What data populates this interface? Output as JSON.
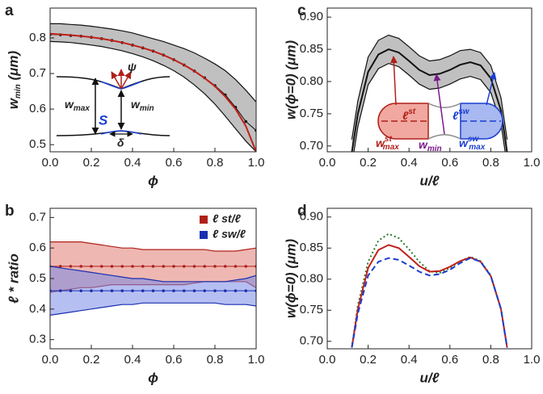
{
  "chart_data": [
    {
      "type": "line",
      "panel": "a",
      "x": [
        0,
        0.05,
        0.1,
        0.15,
        0.2,
        0.25,
        0.3,
        0.35,
        0.4,
        0.45,
        0.5,
        0.55,
        0.6,
        0.65,
        0.7,
        0.75,
        0.8,
        0.85,
        0.9,
        0.95,
        1
      ],
      "xlim": [
        0,
        1
      ],
      "ylim": [
        0.48,
        0.884
      ],
      "xticks": [
        {
          "value": 0,
          "label": "0.0"
        },
        {
          "value": 0.2,
          "label": "0.2"
        },
        {
          "value": 0.4,
          "label": "0.4"
        },
        {
          "value": 0.6,
          "label": "0.6"
        },
        {
          "value": 0.8,
          "label": "0.8"
        },
        {
          "value": 1,
          "label": "1.0"
        }
      ],
      "yticks": [
        0.5,
        0.6,
        0.7,
        0.8
      ],
      "xlabel": "ϕ",
      "ylabel": {
        "main": "w",
        "sub": "min",
        "unit": " (μm)"
      },
      "series": [
        {
          "color": "#111111",
          "band_color": "#8c8c8c",
          "markers": true,
          "values": [
            0.81,
            0.809,
            0.807,
            0.805,
            0.802,
            0.798,
            0.793,
            0.787,
            0.78,
            0.772,
            0.763,
            0.752,
            0.739,
            0.724,
            0.707,
            0.688,
            0.666,
            0.64,
            0.605,
            0.565,
            0.54
          ],
          "upper": [
            0.84,
            0.84,
            0.838,
            0.836,
            0.833,
            0.829,
            0.825,
            0.82,
            0.814,
            0.806,
            0.798,
            0.79,
            0.78,
            0.77,
            0.758,
            0.743,
            0.727,
            0.708,
            0.683,
            0.653,
            0.62
          ],
          "lower": [
            0.79,
            0.789,
            0.787,
            0.784,
            0.78,
            0.776,
            0.77,
            0.764,
            0.756,
            0.747,
            0.736,
            0.723,
            0.708,
            0.69,
            0.668,
            0.643,
            0.614,
            0.58,
            0.545,
            0.51,
            0.48
          ]
        },
        {
          "color": "#c0201a",
          "values": [
            0.812,
            0.81,
            0.808,
            0.805,
            0.802,
            0.798,
            0.793,
            0.787,
            0.78,
            0.772,
            0.763,
            0.752,
            0.739,
            0.724,
            0.707,
            0.687,
            0.664,
            0.635,
            0.6,
            0.552,
            0.48
          ]
        }
      ],
      "annotations": {
        "wmax": {
          "main": "w",
          "sub": "max"
        },
        "wmin": {
          "main": "w",
          "sub": "min"
        },
        "S": "S",
        "delta": "δ",
        "psi": "ψ"
      }
    },
    {
      "type": "line",
      "panel": "b",
      "x": [
        0,
        0.05,
        0.1,
        0.15,
        0.2,
        0.25,
        0.3,
        0.35,
        0.4,
        0.45,
        0.5,
        0.55,
        0.6,
        0.65,
        0.7,
        0.75,
        0.8,
        0.85,
        0.9,
        0.95,
        1
      ],
      "xlim": [
        0,
        1
      ],
      "ylim": [
        0.27,
        0.73
      ],
      "xticks": [
        {
          "value": 0,
          "label": "0.0"
        },
        {
          "value": 0.2,
          "label": "0.2"
        },
        {
          "value": 0.4,
          "label": "0.4"
        },
        {
          "value": 0.6,
          "label": "0.6"
        },
        {
          "value": 0.8,
          "label": "0.8"
        },
        {
          "value": 1,
          "label": "1.0"
        }
      ],
      "yticks": [
        0.3,
        0.4,
        0.5,
        0.6,
        0.7
      ],
      "xlabel": "ϕ",
      "ylabel": "ℓ * ratio",
      "legend": "upper right",
      "series": [
        {
          "name": "ℓ st/ℓ",
          "color": "#b0201a",
          "band_color": "#e07b72",
          "markers": true,
          "values": [
            0.54,
            0.54,
            0.54,
            0.54,
            0.54,
            0.54,
            0.54,
            0.54,
            0.54,
            0.54,
            0.54,
            0.54,
            0.54,
            0.54,
            0.54,
            0.54,
            0.54,
            0.54,
            0.54,
            0.54,
            0.54
          ],
          "upper": [
            0.62,
            0.62,
            0.62,
            0.62,
            0.615,
            0.61,
            0.605,
            0.6,
            0.6,
            0.595,
            0.595,
            0.595,
            0.595,
            0.595,
            0.595,
            0.595,
            0.59,
            0.59,
            0.59,
            0.595,
            0.6
          ],
          "lower": [
            0.455,
            0.46,
            0.465,
            0.47,
            0.47,
            0.475,
            0.48,
            0.48,
            0.48,
            0.48,
            0.48,
            0.48,
            0.48,
            0.48,
            0.485,
            0.49,
            0.49,
            0.49,
            0.49,
            0.49,
            0.47
          ]
        },
        {
          "name": "ℓ sw/ℓ",
          "color": "#1a2fb0",
          "band_color": "#7a8ae6",
          "markers": true,
          "values": [
            0.46,
            0.46,
            0.46,
            0.46,
            0.46,
            0.46,
            0.46,
            0.46,
            0.46,
            0.46,
            0.46,
            0.46,
            0.46,
            0.46,
            0.46,
            0.46,
            0.46,
            0.46,
            0.46,
            0.46,
            0.46
          ],
          "upper": [
            0.54,
            0.535,
            0.53,
            0.525,
            0.52,
            0.515,
            0.51,
            0.505,
            0.5,
            0.5,
            0.495,
            0.49,
            0.49,
            0.49,
            0.49,
            0.49,
            0.49,
            0.49,
            0.495,
            0.5,
            0.51
          ],
          "lower": [
            0.38,
            0.385,
            0.39,
            0.395,
            0.4,
            0.405,
            0.41,
            0.415,
            0.415,
            0.42,
            0.42,
            0.42,
            0.42,
            0.42,
            0.42,
            0.42,
            0.42,
            0.415,
            0.415,
            0.415,
            0.41
          ]
        }
      ]
    },
    {
      "type": "line",
      "panel": "c",
      "x": [
        0.12,
        0.15,
        0.2,
        0.25,
        0.3,
        0.35,
        0.4,
        0.45,
        0.5,
        0.55,
        0.6,
        0.65,
        0.7,
        0.75,
        0.8,
        0.85,
        0.88
      ],
      "xlim": [
        0,
        1
      ],
      "ylim": [
        0.691,
        0.914
      ],
      "xticks": [
        {
          "value": 0,
          "label": "0.0"
        },
        {
          "value": 0.2,
          "label": "0.2"
        },
        {
          "value": 0.4,
          "label": "0.4"
        },
        {
          "value": 0.6,
          "label": "0.6"
        },
        {
          "value": 0.8,
          "label": "0.8"
        },
        {
          "value": 1,
          "label": "1.0"
        }
      ],
      "yticks": [
        {
          "value": 0.7,
          "label": "0.70"
        },
        0.75,
        {
          "value": 0.8,
          "label": "0.80"
        },
        0.85,
        {
          "value": 0.9,
          "label": "0.90"
        }
      ],
      "xlabel": "u/ℓ",
      "ylabel": "w(ϕ=0) (μm)",
      "series": [
        {
          "color": "#111111",
          "band_color": "#8c8c8c",
          "edges": true,
          "values": [
            0.69,
            0.75,
            0.815,
            0.842,
            0.85,
            0.845,
            0.832,
            0.818,
            0.81,
            0.812,
            0.818,
            0.826,
            0.83,
            0.825,
            0.805,
            0.755,
            0.69
          ],
          "upper": [
            0.71,
            0.77,
            0.838,
            0.864,
            0.872,
            0.867,
            0.854,
            0.84,
            0.832,
            0.834,
            0.84,
            0.848,
            0.85,
            0.845,
            0.825,
            0.775,
            0.71
          ],
          "lower": [
            0.67,
            0.73,
            0.795,
            0.82,
            0.828,
            0.823,
            0.81,
            0.796,
            0.788,
            0.79,
            0.796,
            0.804,
            0.808,
            0.803,
            0.783,
            0.735,
            0.67
          ]
        }
      ],
      "annotations": {
        "lst": {
          "main": "ℓ",
          "sup": "st"
        },
        "lsw": {
          "main": "ℓ",
          "sup": "sw"
        },
        "wmaxst": {
          "main": "w",
          "sup": "st",
          "sub": "max"
        },
        "wmin": {
          "main": "w",
          "sub": "min"
        },
        "wmaxsw": {
          "main": "w",
          "sup": "sw",
          "sub": "max"
        }
      }
    },
    {
      "type": "line",
      "panel": "d",
      "x": [
        0.12,
        0.15,
        0.2,
        0.25,
        0.3,
        0.35,
        0.4,
        0.45,
        0.5,
        0.55,
        0.6,
        0.65,
        0.7,
        0.75,
        0.8,
        0.85,
        0.88
      ],
      "xlim": [
        0,
        1
      ],
      "ylim": [
        0.688,
        0.914
      ],
      "xticks": [
        {
          "value": 0,
          "label": "0.0"
        },
        {
          "value": 0.2,
          "label": "0.2"
        },
        {
          "value": 0.4,
          "label": "0.4"
        },
        {
          "value": 0.6,
          "label": "0.6"
        },
        {
          "value": 0.8,
          "label": "0.8"
        },
        {
          "value": 1,
          "label": "1.0"
        }
      ],
      "yticks": [
        {
          "value": 0.7,
          "label": "0.70"
        },
        0.75,
        {
          "value": 0.8,
          "label": "0.80"
        },
        0.85,
        {
          "value": 0.9,
          "label": "0.90"
        }
      ],
      "xlabel": "u/ℓ",
      "ylabel": "w(ϕ=0) (μm)",
      "series": [
        {
          "color": "#2a7a2a",
          "dash": "dotted",
          "values": [
            0.69,
            0.758,
            0.828,
            0.862,
            0.873,
            0.866,
            0.848,
            0.828,
            0.813,
            0.81,
            0.818,
            0.829,
            0.836,
            0.829,
            0.806,
            0.752,
            0.69
          ]
        },
        {
          "color": "#c0201a",
          "dash": "solid",
          "values": [
            0.69,
            0.752,
            0.818,
            0.847,
            0.855,
            0.85,
            0.836,
            0.821,
            0.812,
            0.813,
            0.82,
            0.829,
            0.835,
            0.828,
            0.805,
            0.752,
            0.69
          ]
        },
        {
          "color": "#1a3fd0",
          "dash": "dashed",
          "values": [
            0.69,
            0.745,
            0.806,
            0.828,
            0.834,
            0.831,
            0.822,
            0.812,
            0.806,
            0.808,
            0.815,
            0.826,
            0.834,
            0.828,
            0.805,
            0.752,
            0.69
          ]
        }
      ]
    }
  ]
}
